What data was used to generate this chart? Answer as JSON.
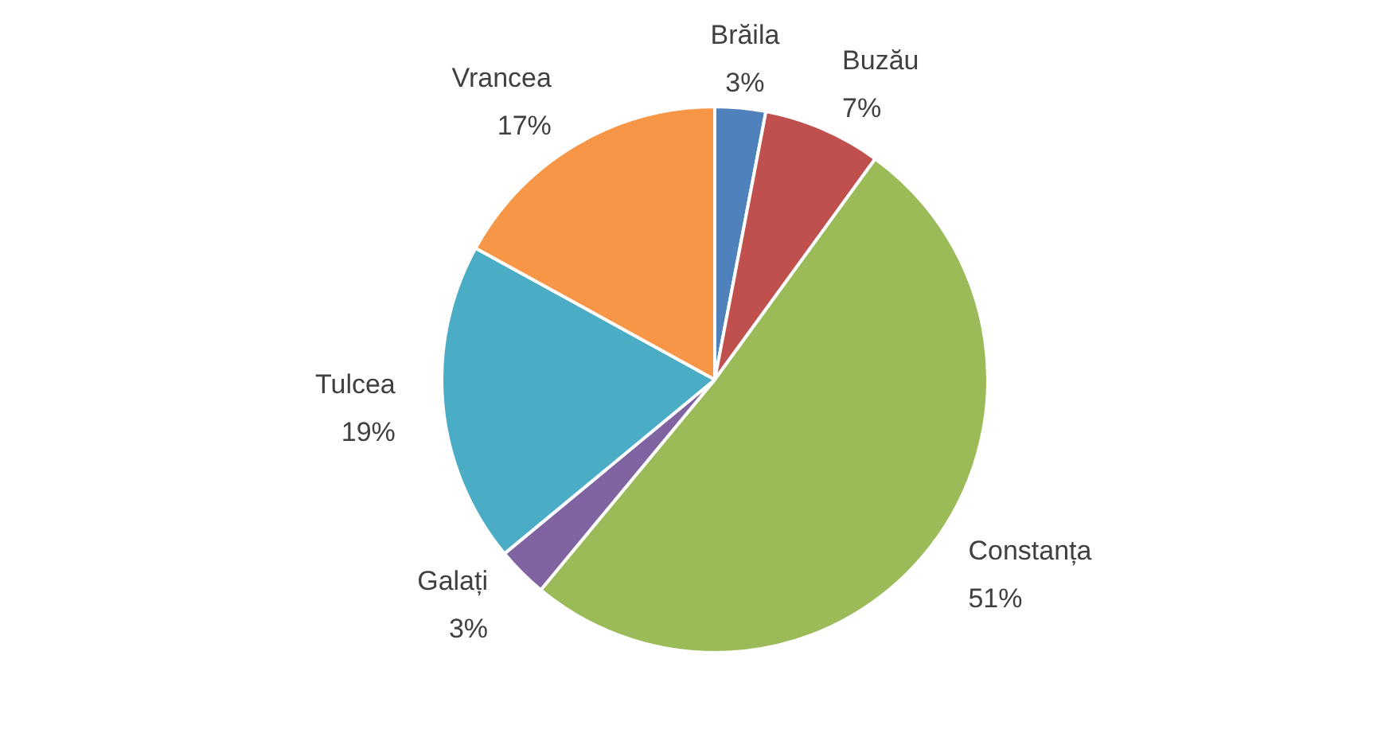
{
  "chart_data": {
    "type": "pie",
    "categories": [
      "Brăila",
      "Buzău",
      "Constanța",
      "Galați",
      "Tulcea",
      "Vrancea"
    ],
    "values": [
      3,
      7,
      51,
      3,
      19,
      17
    ],
    "value_labels": [
      "3%",
      "7%",
      "51%",
      "3%",
      "19%",
      "17%"
    ],
    "colors": [
      "#4f81bd",
      "#c0504d",
      "#9bbb59",
      "#8064a2",
      "#4bacc6",
      "#f79646"
    ],
    "legend": false
  }
}
